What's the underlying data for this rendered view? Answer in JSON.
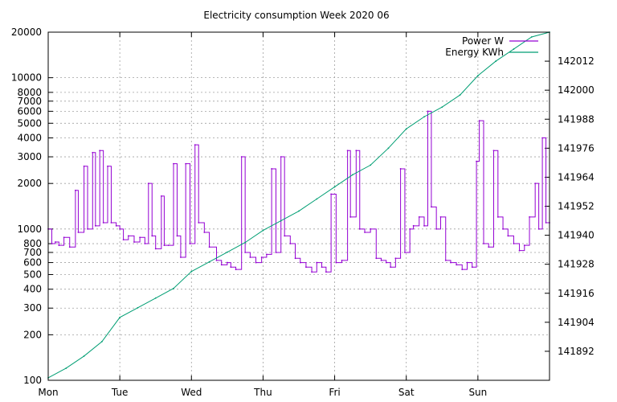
{
  "chart_data": {
    "type": "line",
    "title": "Electricity consumption Week 2020 06",
    "x_ticks": [
      "Mon",
      "Tue",
      "Wed",
      "Thu",
      "Fri",
      "Sat",
      "Sun"
    ],
    "x_range_days": [
      0,
      7
    ],
    "y_left": {
      "scale": "log",
      "range": [
        100,
        20000
      ],
      "ticks": [
        100,
        200,
        300,
        400,
        500,
        600,
        700,
        800,
        1000,
        2000,
        3000,
        4000,
        5000,
        6000,
        7000,
        8000,
        10000,
        20000
      ]
    },
    "y_right": {
      "scale": "linear",
      "range": [
        141880,
        142024
      ],
      "ticks": [
        141892,
        141904,
        141916,
        141928,
        141940,
        141952,
        141964,
        141976,
        141988,
        142000,
        142012
      ]
    },
    "grid": true,
    "legend_position": "top-right",
    "series": [
      {
        "name": "Power W",
        "axis": "left",
        "color": "#9400d3",
        "points": [
          [
            0.0,
            1000
          ],
          [
            0.05,
            800
          ],
          [
            0.1,
            820
          ],
          [
            0.15,
            780
          ],
          [
            0.22,
            880
          ],
          [
            0.3,
            760
          ],
          [
            0.38,
            1800
          ],
          [
            0.42,
            950
          ],
          [
            0.5,
            2600
          ],
          [
            0.55,
            1000
          ],
          [
            0.62,
            3200
          ],
          [
            0.66,
            1050
          ],
          [
            0.72,
            3300
          ],
          [
            0.77,
            1100
          ],
          [
            0.83,
            2600
          ],
          [
            0.88,
            1100
          ],
          [
            0.95,
            1050
          ],
          [
            1.0,
            1000
          ],
          [
            1.05,
            850
          ],
          [
            1.12,
            900
          ],
          [
            1.2,
            820
          ],
          [
            1.28,
            880
          ],
          [
            1.35,
            800
          ],
          [
            1.4,
            2000
          ],
          [
            1.45,
            900
          ],
          [
            1.5,
            740
          ],
          [
            1.58,
            1650
          ],
          [
            1.62,
            780
          ],
          [
            1.68,
            780
          ],
          [
            1.75,
            2700
          ],
          [
            1.8,
            900
          ],
          [
            1.85,
            650
          ],
          [
            1.92,
            2700
          ],
          [
            1.98,
            800
          ],
          [
            2.05,
            3600
          ],
          [
            2.1,
            1100
          ],
          [
            2.18,
            950
          ],
          [
            2.25,
            760
          ],
          [
            2.35,
            620
          ],
          [
            2.42,
            580
          ],
          [
            2.5,
            600
          ],
          [
            2.55,
            560
          ],
          [
            2.62,
            540
          ],
          [
            2.7,
            3000
          ],
          [
            2.75,
            700
          ],
          [
            2.82,
            650
          ],
          [
            2.9,
            600
          ],
          [
            2.98,
            650
          ],
          [
            3.05,
            680
          ],
          [
            3.12,
            2500
          ],
          [
            3.18,
            700
          ],
          [
            3.25,
            3000
          ],
          [
            3.3,
            900
          ],
          [
            3.38,
            800
          ],
          [
            3.45,
            640
          ],
          [
            3.52,
            600
          ],
          [
            3.6,
            560
          ],
          [
            3.68,
            520
          ],
          [
            3.75,
            600
          ],
          [
            3.82,
            560
          ],
          [
            3.88,
            520
          ],
          [
            3.95,
            1700
          ],
          [
            4.02,
            600
          ],
          [
            4.1,
            620
          ],
          [
            4.18,
            3300
          ],
          [
            4.22,
            1200
          ],
          [
            4.3,
            3300
          ],
          [
            4.35,
            1000
          ],
          [
            4.42,
            950
          ],
          [
            4.5,
            1000
          ],
          [
            4.58,
            640
          ],
          [
            4.65,
            620
          ],
          [
            4.72,
            600
          ],
          [
            4.78,
            560
          ],
          [
            4.85,
            640
          ],
          [
            4.92,
            2500
          ],
          [
            4.98,
            700
          ],
          [
            5.05,
            1000
          ],
          [
            5.1,
            1050
          ],
          [
            5.18,
            1200
          ],
          [
            5.25,
            1050
          ],
          [
            5.3,
            6000
          ],
          [
            5.35,
            1400
          ],
          [
            5.42,
            1000
          ],
          [
            5.48,
            1200
          ],
          [
            5.55,
            620
          ],
          [
            5.62,
            600
          ],
          [
            5.7,
            580
          ],
          [
            5.78,
            540
          ],
          [
            5.85,
            600
          ],
          [
            5.92,
            560
          ],
          [
            5.98,
            2800
          ],
          [
            6.02,
            5200
          ],
          [
            6.08,
            800
          ],
          [
            6.15,
            760
          ],
          [
            6.22,
            3300
          ],
          [
            6.28,
            1200
          ],
          [
            6.35,
            1000
          ],
          [
            6.42,
            900
          ],
          [
            6.5,
            800
          ],
          [
            6.58,
            720
          ],
          [
            6.65,
            780
          ],
          [
            6.72,
            1200
          ],
          [
            6.8,
            2000
          ],
          [
            6.85,
            1000
          ],
          [
            6.9,
            4000
          ],
          [
            6.95,
            1100
          ],
          [
            7.0,
            1100
          ]
        ]
      },
      {
        "name": "Energy KWh",
        "axis": "right",
        "color": "#009e73",
        "points": [
          [
            0.0,
            141881
          ],
          [
            0.25,
            141885
          ],
          [
            0.5,
            141890
          ],
          [
            0.75,
            141896
          ],
          [
            1.0,
            141906
          ],
          [
            1.25,
            141910
          ],
          [
            1.5,
            141914
          ],
          [
            1.75,
            141918
          ],
          [
            2.0,
            141925
          ],
          [
            2.25,
            141929
          ],
          [
            2.5,
            141933
          ],
          [
            2.75,
            141937
          ],
          [
            3.0,
            141942
          ],
          [
            3.25,
            141946
          ],
          [
            3.5,
            141950
          ],
          [
            3.75,
            141955
          ],
          [
            4.0,
            141960
          ],
          [
            4.25,
            141965
          ],
          [
            4.5,
            141969
          ],
          [
            4.75,
            141976
          ],
          [
            5.0,
            141984
          ],
          [
            5.25,
            141989
          ],
          [
            5.5,
            141993
          ],
          [
            5.75,
            141998
          ],
          [
            6.0,
            142006
          ],
          [
            6.25,
            142012
          ],
          [
            6.5,
            142017
          ],
          [
            6.75,
            142022
          ],
          [
            7.0,
            142024
          ]
        ]
      }
    ]
  }
}
